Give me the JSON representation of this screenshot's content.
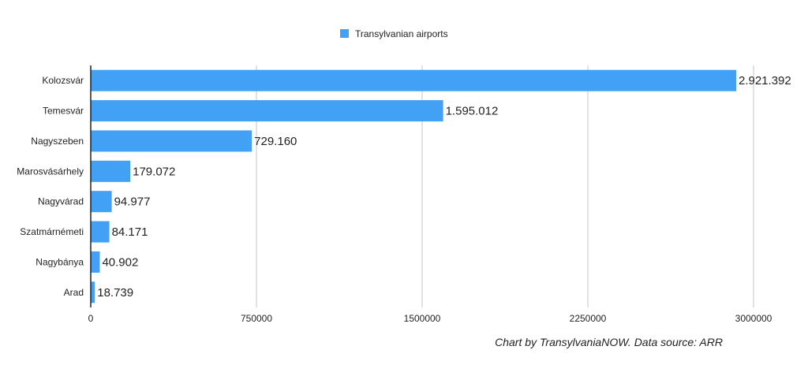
{
  "chart_data": {
    "type": "bar",
    "orientation": "horizontal",
    "categories": [
      "Kolozsvár",
      "Temesvár",
      "Nagyszeben",
      "Marosvásárhely",
      "Nagyvárad",
      "Szatmárnémeti",
      "Nagybánya",
      "Arad"
    ],
    "series": [
      {
        "name": "Transylvanian airports",
        "values": [
          2921392,
          1595012,
          729160,
          179072,
          94977,
          84171,
          40902,
          18739
        ],
        "labels": [
          "2.921.392",
          "1.595.012",
          "729.160",
          "179.072",
          "94.977",
          "84.171",
          "40.902",
          "18.739"
        ],
        "color": "#42a1f5"
      }
    ],
    "xlim": [
      0,
      3000000
    ],
    "xticks": [
      0,
      750000,
      1500000,
      2250000,
      3000000
    ],
    "xtick_labels": [
      "0",
      "750000",
      "1500000",
      "2250000",
      "3000000"
    ],
    "grid": "vertical",
    "legend_position": "top-center"
  },
  "credit": "Chart by TransylvaniaNOW. Data source: ARR"
}
